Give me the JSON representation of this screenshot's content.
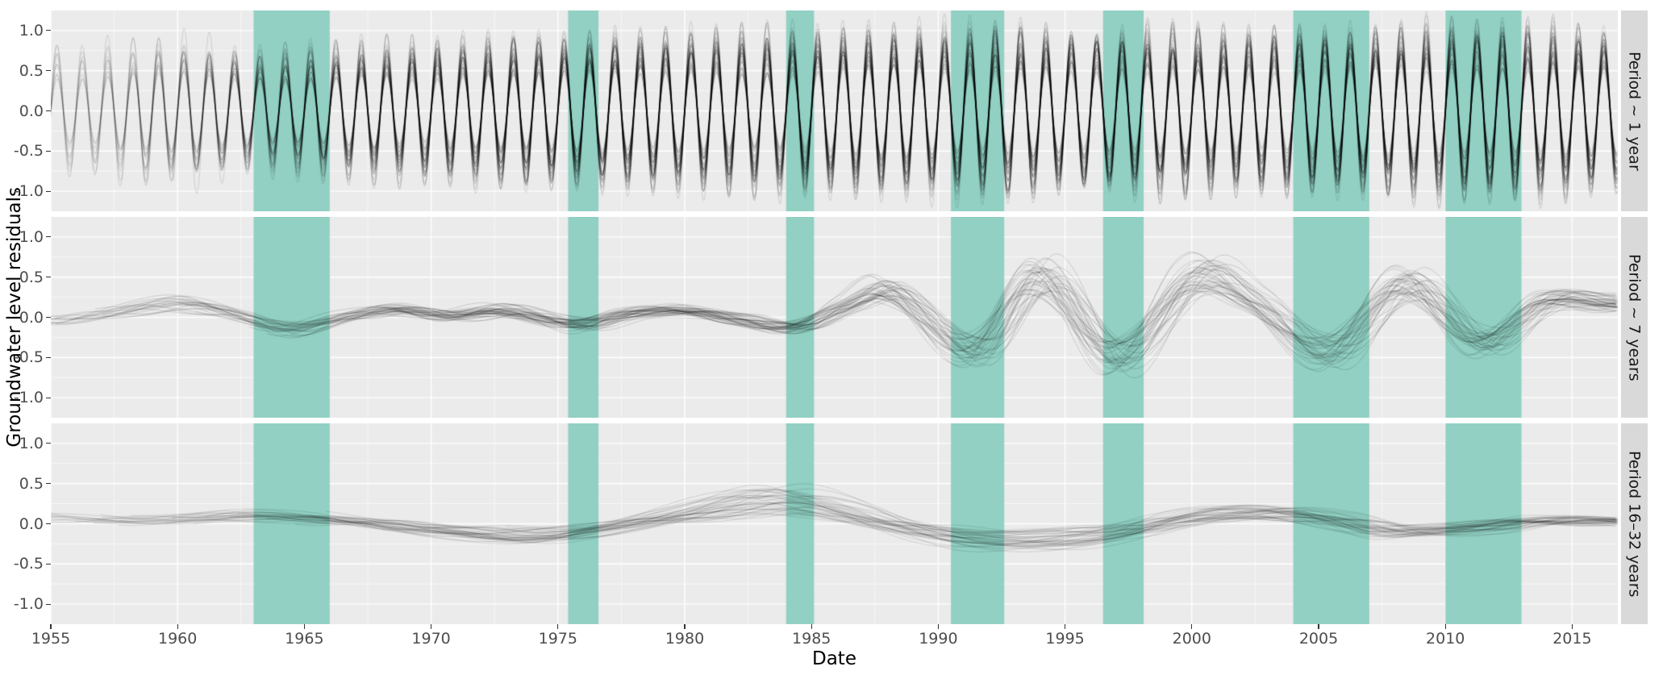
{
  "chart_data": {
    "type": "line",
    "title": "",
    "xlabel": "Date",
    "ylabel": "Groundwater level residuals",
    "x_range": [
      1955,
      2016.8
    ],
    "y_range": [
      -1.25,
      1.25
    ],
    "x_ticks": [
      {
        "value": 1955,
        "label": "1955"
      },
      {
        "value": 1960,
        "label": "1960"
      },
      {
        "value": 1965,
        "label": "1965"
      },
      {
        "value": 1970,
        "label": "1970"
      },
      {
        "value": 1975,
        "label": "1975"
      },
      {
        "value": 1980,
        "label": "1980"
      },
      {
        "value": 1985,
        "label": "1985"
      },
      {
        "value": 1990,
        "label": "1990"
      },
      {
        "value": 1995,
        "label": "1995"
      },
      {
        "value": 2000,
        "label": "2000"
      },
      {
        "value": 2005,
        "label": "2005"
      },
      {
        "value": 2010,
        "label": "2010"
      },
      {
        "value": 2015,
        "label": "2015"
      }
    ],
    "y_ticks": [
      {
        "value": 1.0,
        "label": "1.0"
      },
      {
        "value": 0.5,
        "label": "0.5"
      },
      {
        "value": 0.0,
        "label": "0.0"
      },
      {
        "value": -0.5,
        "label": "-0.5"
      },
      {
        "value": -1.0,
        "label": "-1.0"
      }
    ],
    "panel_bg": "#EBEBEB",
    "grid_major_color": "#FFFFFF",
    "grid_minor_color": "#FFFFFF",
    "strip_bg": "#D9D9D9",
    "line_color": "#000000",
    "band_color": "#8CCFC1",
    "highlight_bands": [
      [
        1963.0,
        1966.0
      ],
      [
        1975.4,
        1976.6
      ],
      [
        1984.0,
        1985.1
      ],
      [
        1990.5,
        1992.6
      ],
      [
        1996.5,
        1998.1
      ],
      [
        2004.0,
        2007.0
      ],
      [
        2010.0,
        2013.0
      ]
    ],
    "facets": [
      {
        "label": "Period ~ 1 year",
        "seed": 101,
        "type": "annual",
        "n_lines": 46,
        "n_early": 9,
        "start_spread": 18,
        "period": 1.0,
        "alpha": 0.16,
        "amp_profile": [
          [
            1955,
            0.8
          ],
          [
            1960,
            0.85
          ],
          [
            1963,
            0.72
          ],
          [
            1967,
            0.78
          ],
          [
            1972,
            0.82
          ],
          [
            1977,
            0.9
          ],
          [
            1982,
            0.92
          ],
          [
            1987,
            0.95
          ],
          [
            1992,
            0.98
          ],
          [
            1997,
            0.93
          ],
          [
            2002,
            0.95
          ],
          [
            2007,
            0.97
          ],
          [
            2012,
            1.0
          ],
          [
            2016.8,
            0.95
          ]
        ],
        "amp_jitter": [
          0.55,
          1.08
        ],
        "phase_jitter": 0.1,
        "noise": 0.18
      },
      {
        "label": "Period ~ 7 years",
        "seed": 202,
        "type": "base_curve",
        "n_lines": 42,
        "n_early": 9,
        "start_spread": 18,
        "alpha": 0.18,
        "base": [
          [
            1955,
            -0.05
          ],
          [
            1957.5,
            0.08
          ],
          [
            1960,
            0.2
          ],
          [
            1962.3,
            0.05
          ],
          [
            1964.5,
            -0.18
          ],
          [
            1966.8,
            0.02
          ],
          [
            1968.8,
            0.12
          ],
          [
            1970.8,
            0.02
          ],
          [
            1973,
            0.1
          ],
          [
            1976,
            -0.12
          ],
          [
            1978,
            0.05
          ],
          [
            1980.2,
            0.1
          ],
          [
            1982.2,
            -0.02
          ],
          [
            1984.6,
            -0.15
          ],
          [
            1986.6,
            0.18
          ],
          [
            1988.3,
            0.38
          ],
          [
            1991.6,
            -0.5
          ],
          [
            1994.2,
            0.6
          ],
          [
            1997.2,
            -0.58
          ],
          [
            2000.3,
            0.58
          ],
          [
            2002.3,
            0.3
          ],
          [
            2005.6,
            -0.52
          ],
          [
            2008.6,
            0.5
          ],
          [
            2011.6,
            -0.38
          ],
          [
            2014.2,
            0.25
          ],
          [
            2016.8,
            0.2
          ]
        ],
        "scale_jitter": [
          0.45,
          1.25
        ],
        "shift_jitter": 0.7,
        "noise": 0.07
      },
      {
        "label": "Period 16–32 years",
        "seed": 303,
        "type": "base_curve",
        "n_lines": 40,
        "n_early": 9,
        "start_spread": 18,
        "alpha": 0.15,
        "base": [
          [
            1955,
            0.08
          ],
          [
            1959,
            0.04
          ],
          [
            1963,
            0.1
          ],
          [
            1967,
            0.02
          ],
          [
            1971,
            -0.1
          ],
          [
            1974,
            -0.16
          ],
          [
            1977,
            -0.05
          ],
          [
            1980,
            0.12
          ],
          [
            1983,
            0.3
          ],
          [
            1985,
            0.25
          ],
          [
            1988,
            0.0
          ],
          [
            1991,
            -0.18
          ],
          [
            1994,
            -0.22
          ],
          [
            1997,
            -0.12
          ],
          [
            2000,
            0.08
          ],
          [
            2002.5,
            0.16
          ],
          [
            2005,
            0.08
          ],
          [
            2008,
            -0.1
          ],
          [
            2011,
            -0.06
          ],
          [
            2013.5,
            0.04
          ],
          [
            2016.8,
            0.03
          ]
        ],
        "scale_jitter": [
          0.4,
          1.5
        ],
        "shift_jitter": 1.5,
        "noise": 0.05
      }
    ]
  }
}
